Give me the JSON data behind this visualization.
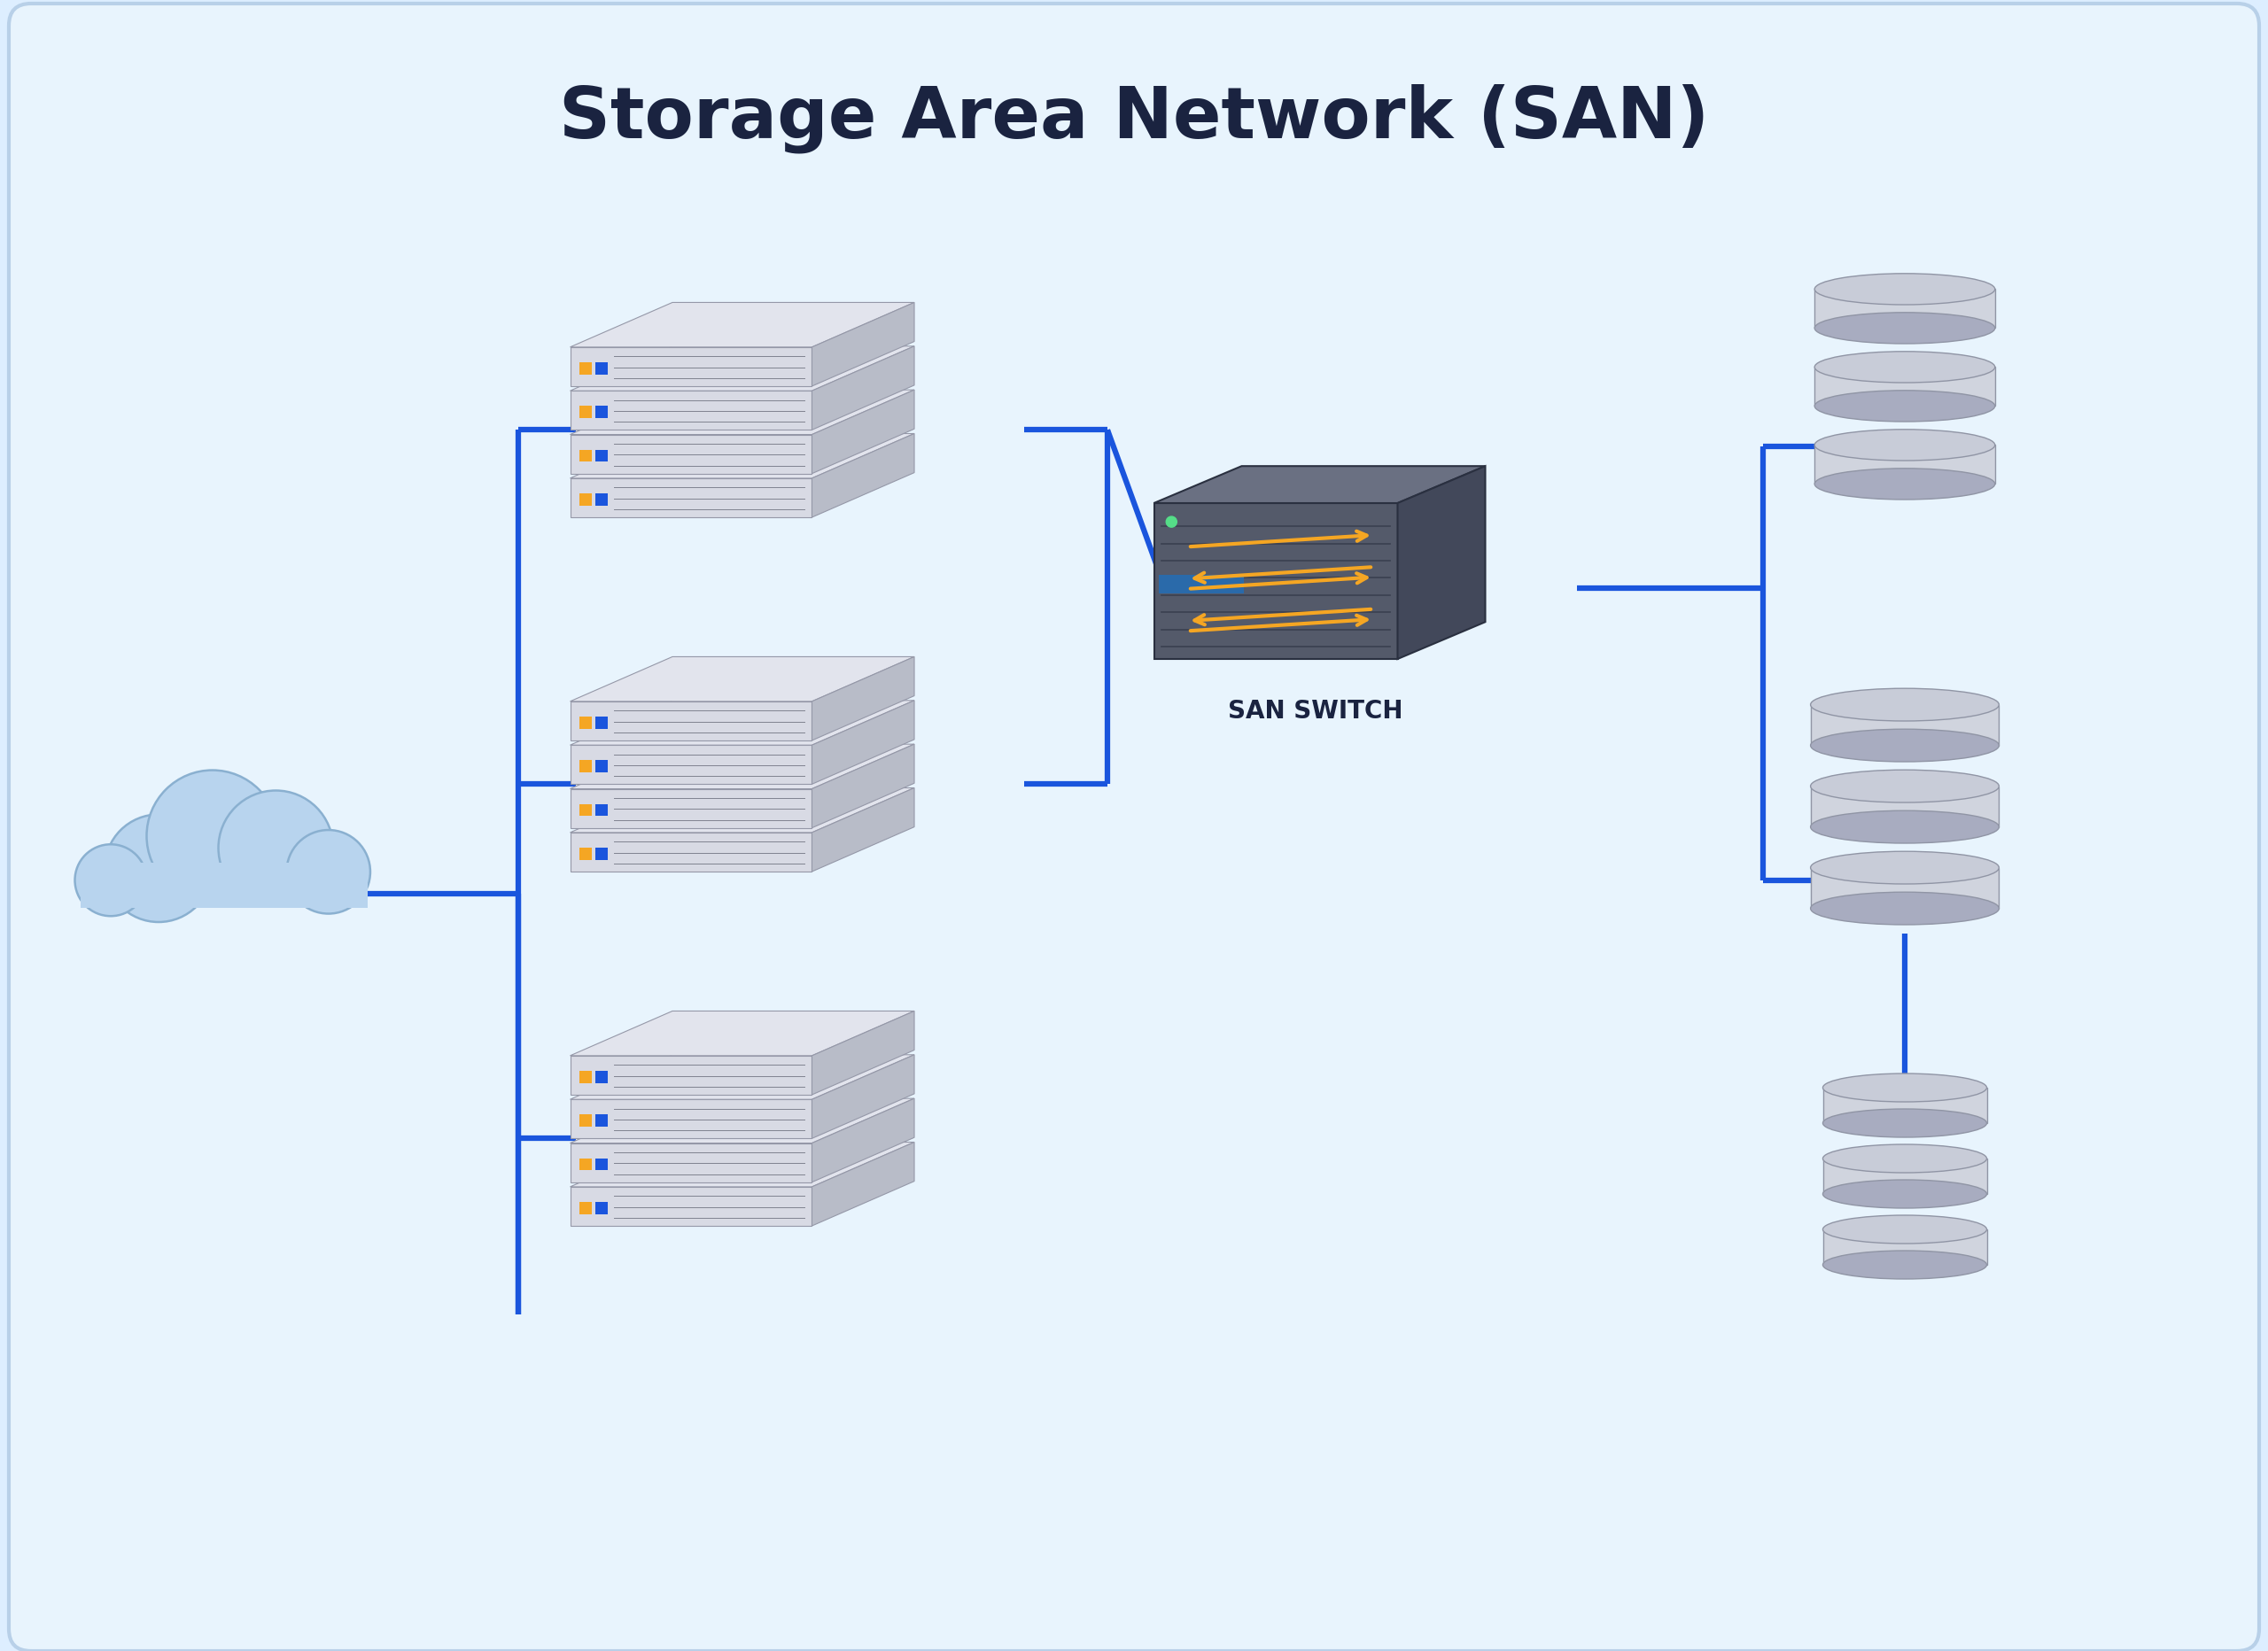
{
  "title": "Storage Area Network (SAN)",
  "title_color": "#1a2340",
  "title_fontsize": 58,
  "bg_color": "#ddeeff",
  "bg_inner_color": "#e8f4fd",
  "line_color": "#1a55dd",
  "line_width": 4.5,
  "san_switch_label": "SAN SWITCH",
  "server_top_color": "#e2e4ed",
  "server_front_color": "#d8dae4",
  "server_side_color": "#b8bcc8",
  "server_edge_color": "#9598a8",
  "indicator_yellow": "#f5a623",
  "indicator_blue": "#1a55dd",
  "switch_front_color": "#545a6a",
  "switch_top_color": "#6a7082",
  "switch_side_color": "#42485a",
  "switch_edge_color": "#2a3040",
  "switch_arrow_color": "#f5a623",
  "switch_vent_color": "#3a4050",
  "storage_top_color": "#c8ccd8",
  "storage_body_color": "#d0d4de",
  "storage_shadow_color": "#a8acc0",
  "storage_edge_color": "#9095a5",
  "cloud_fill_color": "#b8d4ee",
  "cloud_edge_color": "#8ab0d0",
  "cloud_dark_color": "#90bbdd"
}
